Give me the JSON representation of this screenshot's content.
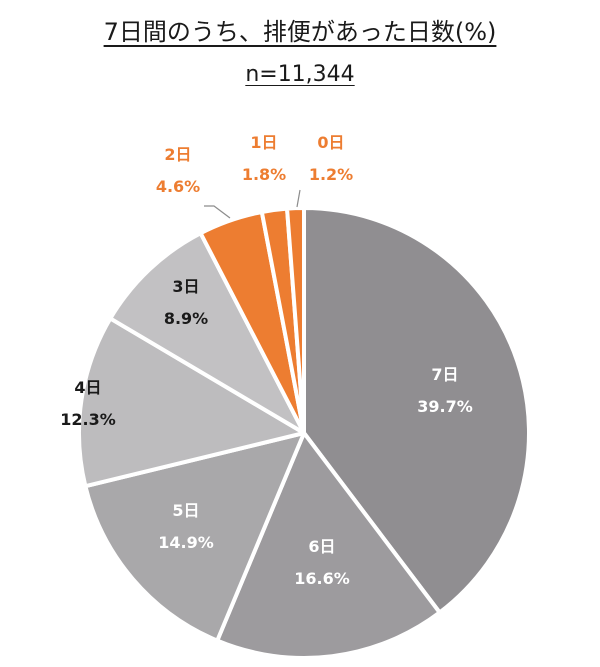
{
  "chart_data": {
    "type": "pie",
    "title": "7日間のうち、排便があった日数(%)",
    "subtitle": "n=11,344",
    "categories": [
      "7日",
      "6日",
      "5日",
      "4日",
      "3日",
      "2日",
      "1日",
      "0日"
    ],
    "values": [
      39.7,
      16.6,
      14.9,
      12.3,
      8.9,
      4.6,
      1.8,
      1.2
    ],
    "value_labels": [
      "39.7%",
      "16.6%",
      "14.9%",
      "12.3%",
      "8.9%",
      "4.6%",
      "1.8%",
      "1.2%"
    ],
    "colors": [
      "#908e91",
      "#9d9b9e",
      "#a9a8aa",
      "#bdbcbe",
      "#c2c1c3",
      "#ed7d31",
      "#ed7d31",
      "#ed7d31"
    ],
    "label_colors": [
      "#ffffff",
      "#ffffff",
      "#ffffff",
      "#1a1a1a",
      "#1a1a1a",
      "#ed7d31",
      "#ed7d31",
      "#ed7d31"
    ],
    "start_angle_deg": 0,
    "direction": "clockwise",
    "legend": "none (data labels on slices)"
  }
}
